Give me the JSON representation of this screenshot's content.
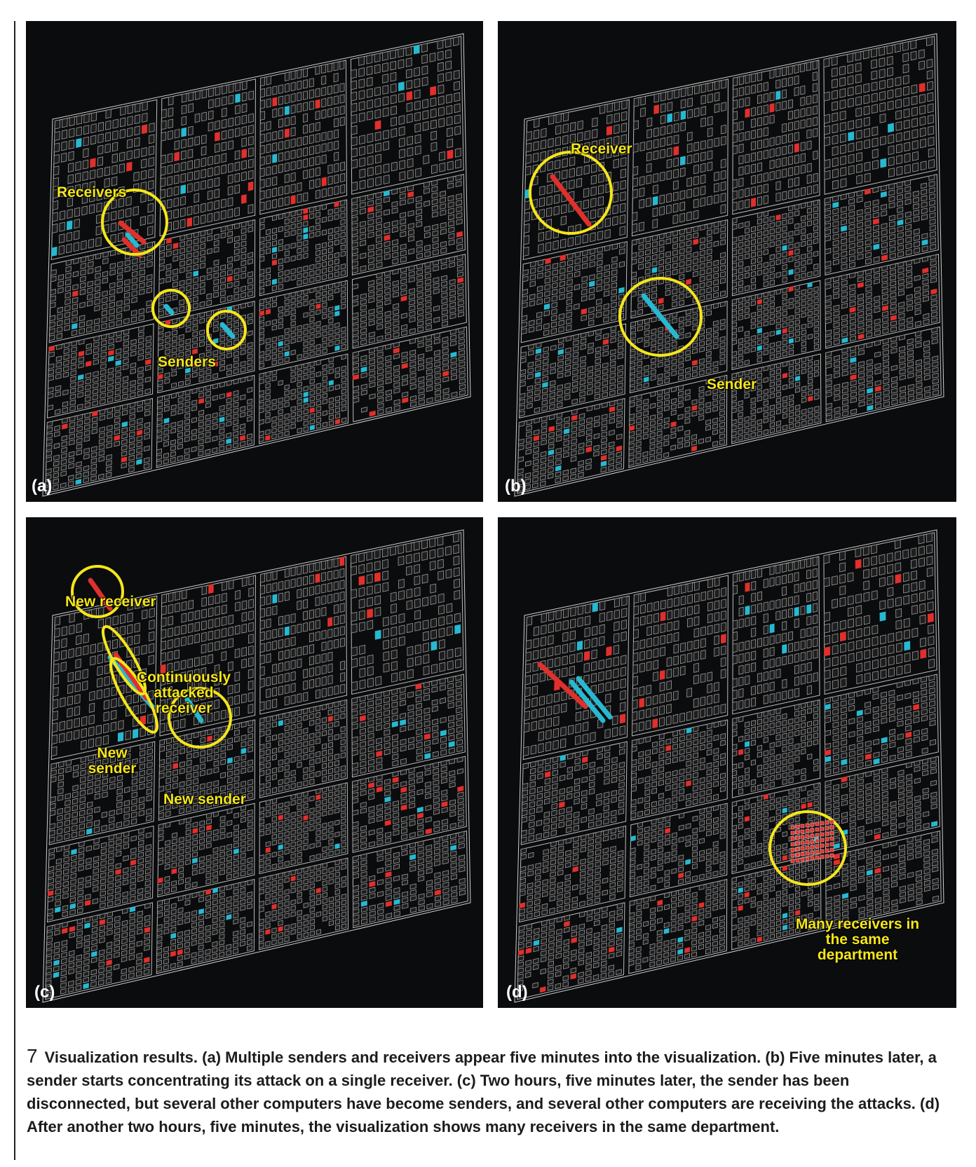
{
  "panels": [
    {
      "label": "(a)",
      "annotations": [
        "Receivers",
        "Senders"
      ]
    },
    {
      "label": "(b)",
      "annotations": [
        "Receiver",
        "Sender"
      ]
    },
    {
      "label": "(c)",
      "annotations": [
        "New receiver",
        "Continuously attacked receiver",
        "New sender",
        "New sender"
      ]
    },
    {
      "label": "(d)",
      "annotations": [
        "Many receivers in the same department"
      ]
    }
  ],
  "caption": {
    "number": "7",
    "text": "Visualization results. (a) Multiple senders and receivers appear five minutes into the visualization. (b) Five minutes later, a sender starts concentrating its attack on a single receiver. (c) Two hours, five minutes later, the sender has been disconnected, but several other computers have become senders, and several other computers are receiving the attacks. (d) After another two hours, five minutes, the visualization shows many receivers in the same department."
  },
  "colors": {
    "annotation": "#f5e61a",
    "receiver": "#e0302c",
    "sender": "#28b8d0",
    "grid": "#9a9a9a",
    "background": "#0b0c0e"
  }
}
